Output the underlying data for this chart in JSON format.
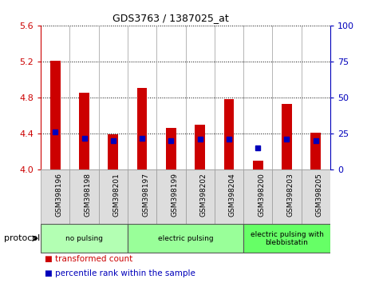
{
  "title": "GDS3763 / 1387025_at",
  "samples": [
    "GSM398196",
    "GSM398198",
    "GSM398201",
    "GSM398197",
    "GSM398199",
    "GSM398202",
    "GSM398204",
    "GSM398200",
    "GSM398203",
    "GSM398205"
  ],
  "transformed_count": [
    5.21,
    4.85,
    4.39,
    4.91,
    4.46,
    4.5,
    4.78,
    4.1,
    4.73,
    4.41
  ],
  "percentile_rank": [
    26,
    22,
    20,
    22,
    20,
    21,
    21,
    15,
    21,
    20
  ],
  "ylim_left": [
    4.0,
    5.6
  ],
  "ylim_right": [
    0,
    100
  ],
  "yticks_left": [
    4.0,
    4.4,
    4.8,
    5.2,
    5.6
  ],
  "yticks_right": [
    0,
    25,
    50,
    75,
    100
  ],
  "groups": [
    {
      "label": "no pulsing",
      "start": 0,
      "end": 3,
      "color": "#b3ffb3"
    },
    {
      "label": "electric pulsing",
      "start": 3,
      "end": 7,
      "color": "#99ff99"
    },
    {
      "label": "electric pulsing with\nblebbistatin",
      "start": 7,
      "end": 10,
      "color": "#66ff66"
    }
  ],
  "bar_color_red": "#cc0000",
  "bar_color_blue": "#0000bb",
  "bar_width": 0.35,
  "legend_red_label": "transformed count",
  "legend_blue_label": "percentile rank within the sample",
  "protocol_label": "protocol",
  "left_axis_color": "#cc0000",
  "right_axis_color": "#0000bb"
}
